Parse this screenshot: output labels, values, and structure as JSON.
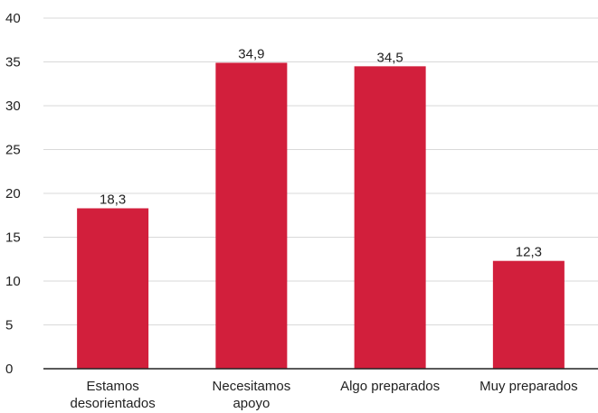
{
  "chart_data": {
    "type": "bar",
    "categories": [
      [
        "Estamos",
        "desorientados"
      ],
      [
        "Necesitamos",
        "apoyo"
      ],
      [
        "Algo preparados"
      ],
      [
        "Muy preparados"
      ]
    ],
    "values": [
      18.3,
      34.9,
      34.5,
      12.3
    ],
    "value_labels": [
      "18,3",
      "34,9",
      "34,5",
      "12,3"
    ],
    "y_ticks": [
      0,
      5,
      10,
      15,
      20,
      25,
      30,
      35,
      40
    ],
    "ylim": [
      0,
      40
    ],
    "title": "",
    "xlabel": "",
    "ylabel": "",
    "grid": true,
    "legend": "none",
    "bar_color": "#d21f3c"
  }
}
